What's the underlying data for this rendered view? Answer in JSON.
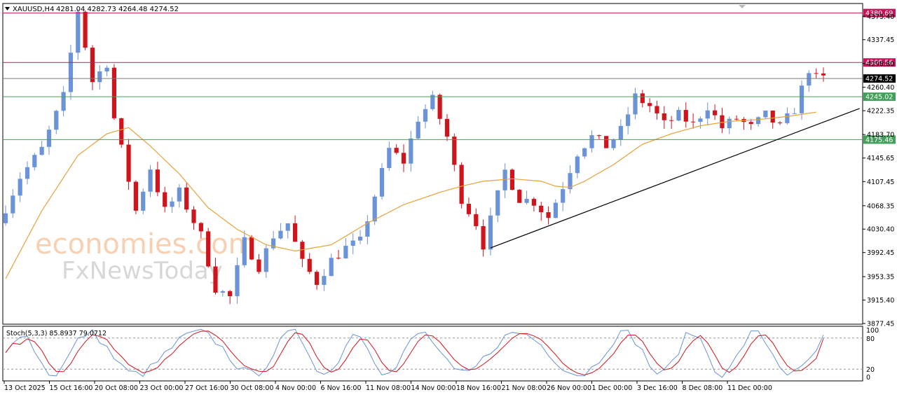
{
  "header": {
    "symbol": "XAUUSD,H4",
    "ohlc": "4281.04 4282.73 4264.48 4274.52"
  },
  "indicator": {
    "label": "Stoch(5,3,3) 85.8937 79.0712",
    "scale": [
      "100",
      "80",
      "20",
      "0"
    ]
  },
  "watermark": {
    "line1": "economies.com",
    "line2": "FxNewsToday"
  },
  "colors": {
    "bull": "#6a93d8",
    "bear": "#d0141c",
    "ma": "#e8a13a",
    "resistance": "#c2185b",
    "support": "#43a05a",
    "current": "#7a7a7a",
    "stoch_main": "#6a93d8",
    "stoch_signal": "#d0141c"
  },
  "chart_data": {
    "type": "candlestick",
    "instrument": "XAUUSD",
    "timeframe": "H4",
    "ylim": [
      3877.45,
      4395
    ],
    "y_ticks": [
      "4375.40",
      "4337.45",
      "4298.80",
      "4260.40",
      "4222.35",
      "4183.70",
      "4145.65",
      "4107.45",
      "4068.35",
      "4030.40",
      "3992.45",
      "3953.35",
      "3915.40",
      "3877.45"
    ],
    "x_ticks": [
      "13 Oct 2025",
      "15 Oct 16:00",
      "20 Oct 08:00",
      "23 Oct 00:00",
      "27 Oct 16:00",
      "30 Oct 08:00",
      "4 Nov 00:00",
      "6 Nov 16:00",
      "11 Nov 08:00",
      "14 Nov 00:00",
      "18 Nov 16:00",
      "21 Nov 08:00",
      "26 Nov 00:00",
      "1 Dec 00:00",
      "3 Dec 16:00",
      "8 Dec 08:00",
      "11 Dec 00:00"
    ],
    "levels": [
      {
        "value": 4380.69,
        "label": "4380.69",
        "kind": "resistance"
      },
      {
        "value": 4300.56,
        "label": "4300.56",
        "kind": "resistance"
      },
      {
        "value": 4274.52,
        "label": "4274.52",
        "kind": "current"
      },
      {
        "value": 4245.02,
        "label": "4245.02",
        "kind": "support"
      },
      {
        "value": 4175.46,
        "label": "4175.46",
        "kind": "support"
      }
    ],
    "price_path": [
      [
        0,
        4040
      ],
      [
        3,
        4115
      ],
      [
        6,
        4160
      ],
      [
        9,
        4245
      ],
      [
        11,
        4385
      ],
      [
        13,
        4270
      ],
      [
        15,
        4300
      ],
      [
        16,
        4210
      ],
      [
        19,
        4060
      ],
      [
        21,
        4130
      ],
      [
        23,
        4060
      ],
      [
        25,
        4090
      ],
      [
        28,
        4020
      ],
      [
        30,
        3935
      ],
      [
        32,
        3920
      ],
      [
        34,
        4010
      ],
      [
        36,
        3970
      ],
      [
        38,
        4020
      ],
      [
        40,
        4040
      ],
      [
        42,
        3975
      ],
      [
        44,
        3945
      ],
      [
        46,
        3980
      ],
      [
        48,
        4000
      ],
      [
        50,
        4010
      ],
      [
        54,
        4160
      ],
      [
        56,
        4140
      ],
      [
        58,
        4210
      ],
      [
        60,
        4240
      ],
      [
        62,
        4180
      ],
      [
        64,
        4080
      ],
      [
        66,
        4040
      ],
      [
        67,
        4005
      ],
      [
        70,
        4125
      ],
      [
        72,
        4080
      ],
      [
        74,
        4075
      ],
      [
        76,
        4050
      ],
      [
        78,
        4100
      ],
      [
        80,
        4155
      ],
      [
        82,
        4180
      ],
      [
        84,
        4165
      ],
      [
        86,
        4190
      ],
      [
        88,
        4245
      ],
      [
        90,
        4230
      ],
      [
        92,
        4200
      ],
      [
        94,
        4215
      ],
      [
        96,
        4200
      ],
      [
        98,
        4230
      ],
      [
        100,
        4195
      ],
      [
        102,
        4210
      ],
      [
        104,
        4195
      ],
      [
        106,
        4215
      ],
      [
        108,
        4195
      ],
      [
        110,
        4225
      ],
      [
        112,
        4290
      ],
      [
        113,
        4274.52
      ]
    ],
    "ma_path": [
      [
        0,
        3950
      ],
      [
        5,
        4060
      ],
      [
        10,
        4150
      ],
      [
        14,
        4185
      ],
      [
        17,
        4195
      ],
      [
        20,
        4165
      ],
      [
        24,
        4120
      ],
      [
        28,
        4065
      ],
      [
        32,
        4030
      ],
      [
        36,
        4005
      ],
      [
        40,
        3995
      ],
      [
        45,
        4005
      ],
      [
        50,
        4040
      ],
      [
        55,
        4070
      ],
      [
        60,
        4090
      ],
      [
        63,
        4100
      ],
      [
        66,
        4108
      ],
      [
        70,
        4112
      ],
      [
        74,
        4108
      ],
      [
        76,
        4100
      ],
      [
        78,
        4098
      ],
      [
        80,
        4108
      ],
      [
        84,
        4135
      ],
      [
        88,
        4168
      ],
      [
        92,
        4185
      ],
      [
        96,
        4198
      ],
      [
        100,
        4205
      ],
      [
        104,
        4208
      ],
      [
        108,
        4213
      ],
      [
        112,
        4220
      ]
    ],
    "trendline": [
      [
        4000.0,
        67
      ],
      [
        4226.0,
        118
      ]
    ],
    "stochastic": {
      "k_params": [
        5,
        3,
        3
      ],
      "main_last": 85.8937,
      "signal_last": 79.0712,
      "levels": [
        80,
        20
      ],
      "ylim": [
        0,
        100
      ]
    }
  }
}
